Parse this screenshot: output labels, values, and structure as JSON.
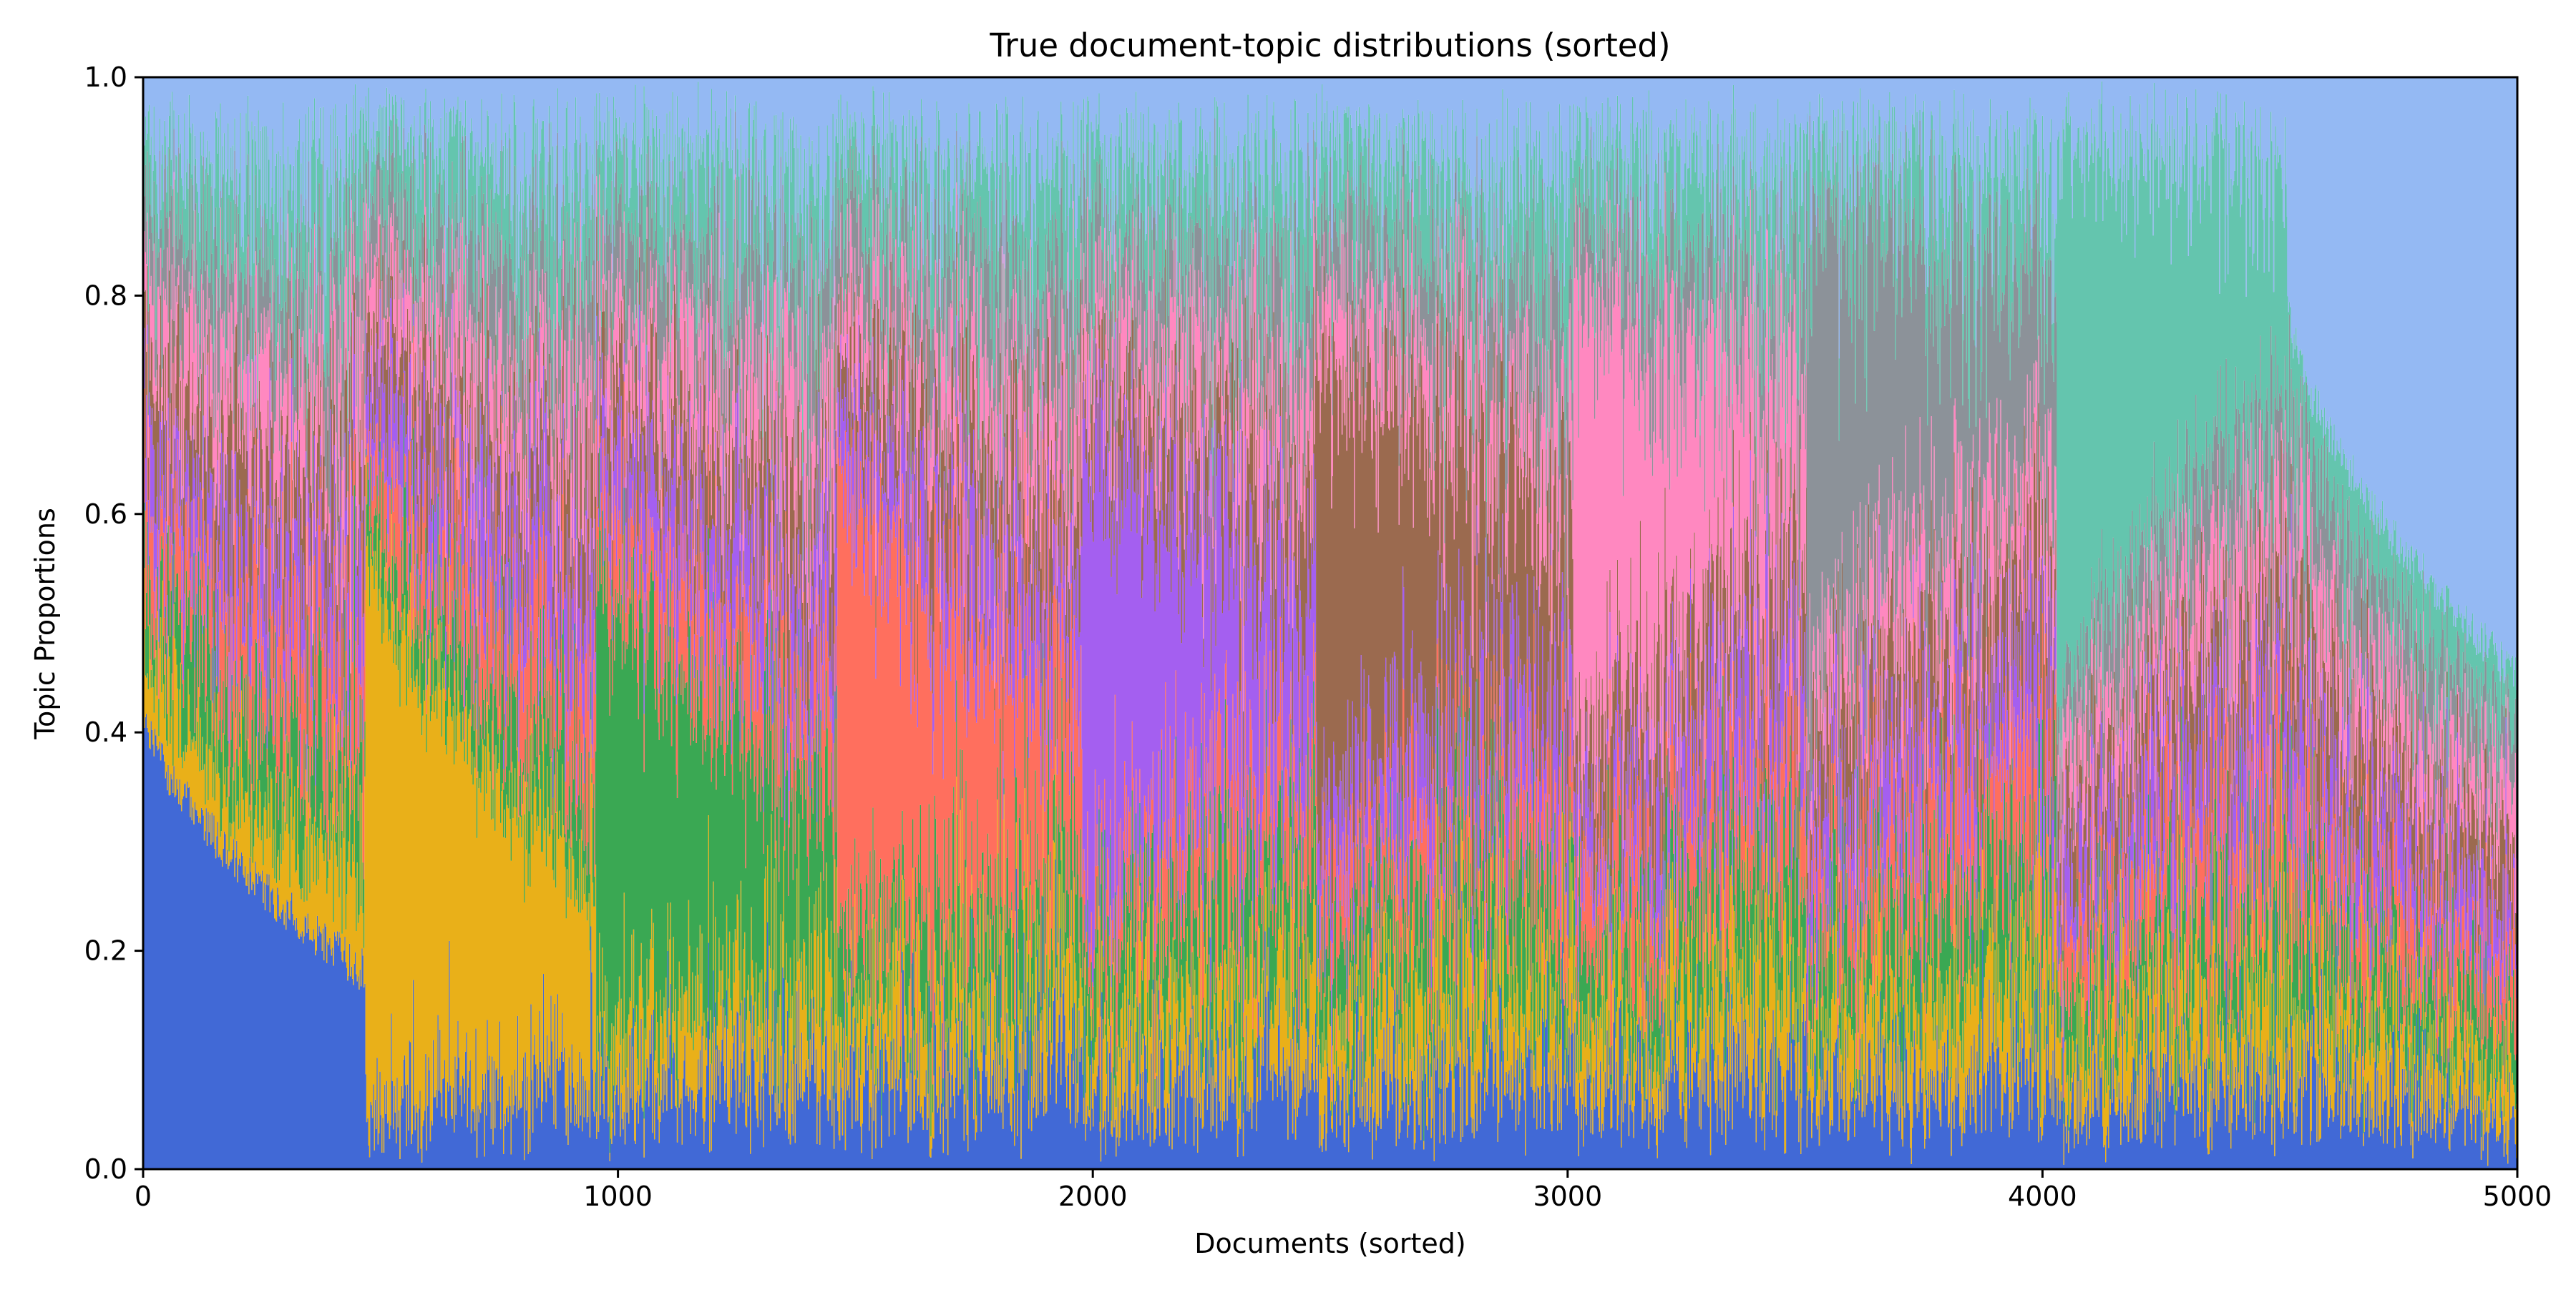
{
  "chart_data": {
    "type": "area",
    "title": "True document-topic distributions (sorted)",
    "xlabel": "Documents (sorted)",
    "ylabel": "Topic Proportions",
    "xlim": [
      0,
      5000
    ],
    "ylim": [
      0,
      1.0
    ],
    "x_ticks": [
      0,
      1000,
      2000,
      3000,
      4000,
      5000
    ],
    "x_tick_labels": [
      "0",
      "1000",
      "2000",
      "3000",
      "4000",
      "5000"
    ],
    "y_ticks": [
      0.0,
      0.2,
      0.4,
      0.6,
      0.8,
      1.0
    ],
    "y_tick_labels": [
      "0.0",
      "0.2",
      "0.4",
      "0.6",
      "0.8",
      "1.0"
    ],
    "grid": false,
    "legend": "none",
    "n_documents": 5000,
    "n_topics": 10,
    "topic_colors": [
      "#4169d6",
      "#e9b019",
      "#3aa853",
      "#ff6f5e",
      "#a45ff0",
      "#9b6a4f",
      "#ff88c0",
      "#8c9299",
      "#64c5ae",
      "#94b9f3"
    ],
    "blocks": [
      {
        "dominant_topic": 0,
        "x": [
          0,
          468
        ],
        "dominant_share_range": [
          0.43,
          0.18
        ]
      },
      {
        "dominant_topic": 1,
        "x": [
          468,
          954
        ],
        "dominant_share_range": [
          0.55,
          0.18
        ]
      },
      {
        "dominant_topic": 2,
        "x": [
          954,
          1462
        ],
        "dominant_share_range": [
          0.45,
          0.15
        ]
      },
      {
        "dominant_topic": 3,
        "x": [
          1462,
          1978
        ],
        "dominant_share_range": [
          0.45,
          0.15
        ]
      },
      {
        "dominant_topic": 4,
        "x": [
          1978,
          2470
        ],
        "dominant_share_range": [
          0.45,
          0.15
        ]
      },
      {
        "dominant_topic": 5,
        "x": [
          2470,
          3012
        ],
        "dominant_share_range": [
          0.45,
          0.15
        ]
      },
      {
        "dominant_topic": 6,
        "x": [
          3012,
          3503
        ],
        "dominant_share_range": [
          0.45,
          0.15
        ]
      },
      {
        "dominant_topic": 7,
        "x": [
          3503,
          4030
        ],
        "dominant_share_range": [
          0.45,
          0.15
        ]
      },
      {
        "dominant_topic": 8,
        "x": [
          4030,
          4515
        ],
        "dominant_share_range": [
          0.55,
          0.2
        ]
      },
      {
        "dominant_topic": 9,
        "x": [
          4515,
          5000
        ],
        "dominant_share_range": [
          0.2,
          0.55
        ]
      }
    ]
  }
}
